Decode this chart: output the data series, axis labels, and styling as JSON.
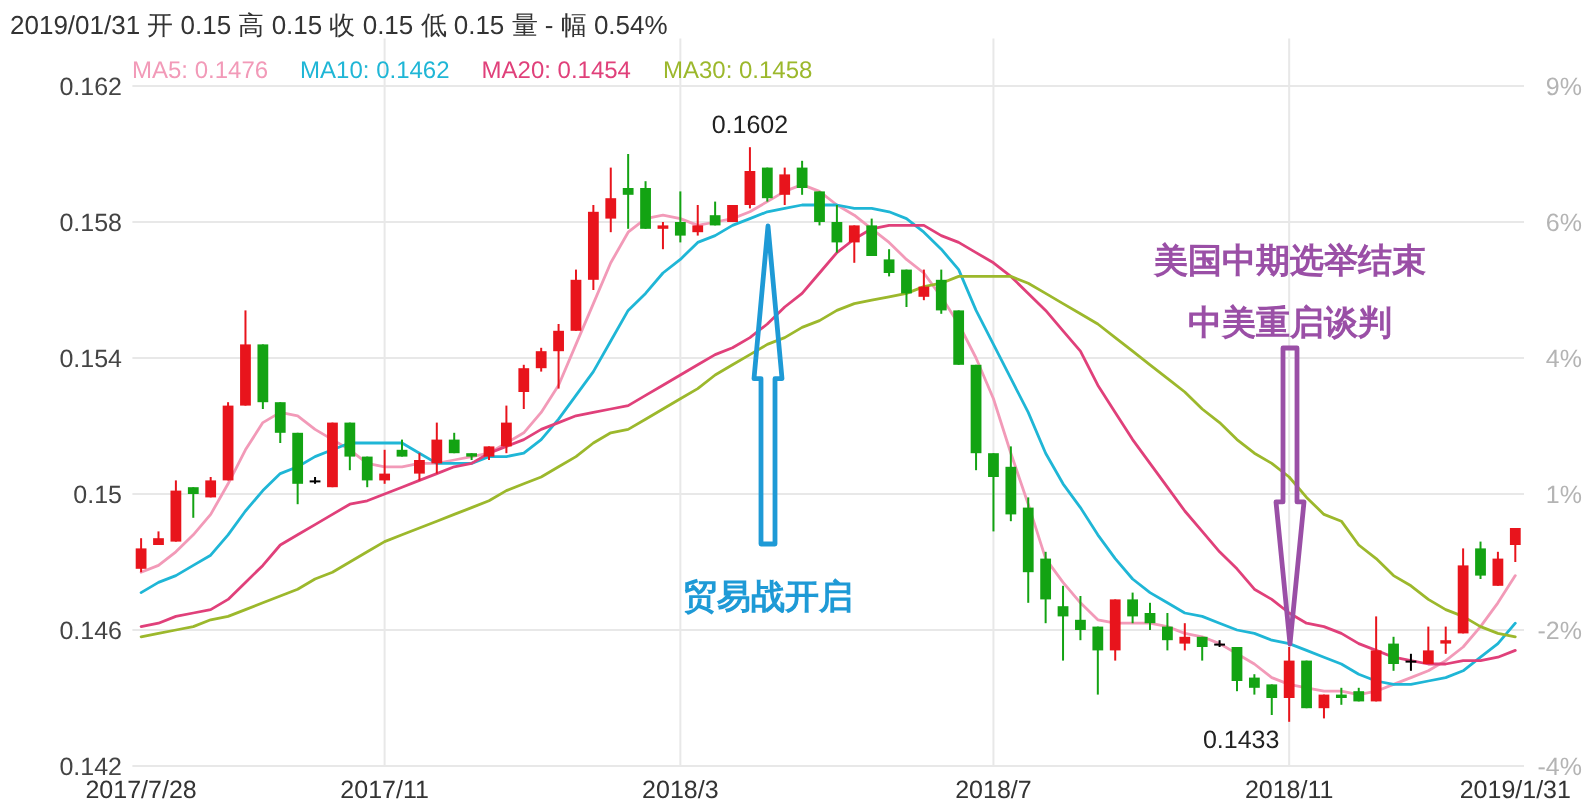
{
  "chart_data": {
    "type": "candlestick",
    "title": "2019/01/31 开 0.15 高 0.15 收 0.15 低 0.15 量 - 幅 0.54%",
    "categories": [
      "2017/7/28",
      null,
      null,
      null,
      null,
      null,
      null,
      null,
      null,
      null,
      null,
      null,
      null,
      null,
      "2017/11",
      null,
      null,
      null,
      null,
      null,
      null,
      null,
      null,
      null,
      null,
      null,
      null,
      null,
      null,
      null,
      null,
      "2018/3",
      null,
      null,
      null,
      null,
      null,
      null,
      null,
      null,
      null,
      null,
      null,
      null,
      null,
      null,
      null,
      null,
      null,
      "2018/7",
      null,
      null,
      null,
      null,
      null,
      null,
      null,
      null,
      null,
      null,
      null,
      null,
      null,
      null,
      null,
      null,
      "2018/11",
      null,
      null,
      null,
      null,
      null,
      null,
      null,
      null,
      null,
      null,
      null,
      null,
      "2019/1/31"
    ],
    "ohlc": [
      [
        0.1478,
        0.1487,
        0.1477,
        0.1484
      ],
      [
        0.1485,
        0.1489,
        0.1485,
        0.1487
      ],
      [
        0.1486,
        0.1504,
        0.1486,
        0.1501
      ],
      [
        0.1502,
        0.1502,
        0.1493,
        0.15
      ],
      [
        0.1499,
        0.1505,
        0.1499,
        0.1504
      ],
      [
        0.1504,
        0.1527,
        0.1504,
        0.1526
      ],
      [
        0.1526,
        0.1554,
        0.1526,
        0.1544
      ],
      [
        0.1544,
        0.1544,
        0.1525,
        0.1527
      ],
      [
        0.1527,
        0.1527,
        0.1515,
        0.1518
      ],
      [
        0.1518,
        0.1518,
        0.1497,
        0.1503
      ],
      [
        0.1504,
        0.1505,
        0.1503,
        0.1504
      ],
      [
        0.1502,
        0.1521,
        0.1502,
        0.1521
      ],
      [
        0.1521,
        0.1521,
        0.1507,
        0.1511
      ],
      [
        0.1511,
        0.1511,
        0.1502,
        0.1504
      ],
      [
        0.1504,
        0.1513,
        0.1503,
        0.1506
      ],
      [
        0.1513,
        0.1516,
        0.1511,
        0.1511
      ],
      [
        0.1506,
        0.1512,
        0.1504,
        0.151
      ],
      [
        0.1509,
        0.1521,
        0.1506,
        0.1516
      ],
      [
        0.1516,
        0.1518,
        0.1512,
        0.1512
      ],
      [
        0.1512,
        0.1512,
        0.151,
        0.1511
      ],
      [
        0.1511,
        0.1514,
        0.151,
        0.1514
      ],
      [
        0.1514,
        0.1526,
        0.1512,
        0.1521
      ],
      [
        0.153,
        0.1538,
        0.1525,
        0.1537
      ],
      [
        0.1537,
        0.1543,
        0.1536,
        0.1542
      ],
      [
        0.1542,
        0.155,
        0.1531,
        0.1548
      ],
      [
        0.1548,
        0.1566,
        0.1548,
        0.1563
      ],
      [
        0.1563,
        0.1585,
        0.156,
        0.1583
      ],
      [
        0.1581,
        0.1596,
        0.1577,
        0.1587
      ],
      [
        0.159,
        0.16,
        0.1578,
        0.1588
      ],
      [
        0.159,
        0.1592,
        0.1578,
        0.1578
      ],
      [
        0.1578,
        0.158,
        0.1572,
        0.1579
      ],
      [
        0.158,
        0.1589,
        0.1574,
        0.1576
      ],
      [
        0.1577,
        0.1585,
        0.1576,
        0.1579
      ],
      [
        0.1582,
        0.1586,
        0.1579,
        0.1579
      ],
      [
        0.158,
        0.1585,
        0.158,
        0.1585
      ],
      [
        0.1585,
        0.1602,
        0.1584,
        0.1595
      ],
      [
        0.1596,
        0.1596,
        0.1586,
        0.1587
      ],
      [
        0.1588,
        0.1596,
        0.1585,
        0.1594
      ],
      [
        0.1596,
        0.1598,
        0.1588,
        0.159
      ],
      [
        0.1589,
        0.1589,
        0.1579,
        0.158
      ],
      [
        0.158,
        0.1585,
        0.1571,
        0.1574
      ],
      [
        0.1574,
        0.1579,
        0.1568,
        0.1579
      ],
      [
        0.1579,
        0.1581,
        0.157,
        0.157
      ],
      [
        0.1569,
        0.1572,
        0.1564,
        0.1565
      ],
      [
        0.1566,
        0.1566,
        0.1555,
        0.1559
      ],
      [
        0.1558,
        0.1566,
        0.1557,
        0.1561
      ],
      [
        0.1563,
        0.1566,
        0.1553,
        0.1554
      ],
      [
        0.1554,
        0.1554,
        0.1538,
        0.1538
      ],
      [
        0.1538,
        0.1538,
        0.1507,
        0.1512
      ],
      [
        0.1512,
        0.1512,
        0.1489,
        0.1505
      ],
      [
        0.1508,
        0.1514,
        0.1492,
        0.1494
      ],
      [
        0.1496,
        0.1499,
        0.1468,
        0.1477
      ],
      [
        0.1481,
        0.1483,
        0.1462,
        0.1469
      ],
      [
        0.1467,
        0.1473,
        0.1451,
        0.1464
      ],
      [
        0.1463,
        0.147,
        0.1457,
        0.146
      ],
      [
        0.1461,
        0.1461,
        0.1441,
        0.1454
      ],
      [
        0.1454,
        0.1469,
        0.1451,
        0.1469
      ],
      [
        0.1469,
        0.1471,
        0.1462,
        0.1464
      ],
      [
        0.1465,
        0.1468,
        0.146,
        0.1462
      ],
      [
        0.1461,
        0.1465,
        0.1454,
        0.1457
      ],
      [
        0.1456,
        0.1462,
        0.1454,
        0.1458
      ],
      [
        0.1458,
        0.1458,
        0.1451,
        0.1455
      ],
      [
        0.1456,
        0.1457,
        0.1455,
        0.1456
      ],
      [
        0.1455,
        0.1455,
        0.1442,
        0.1445
      ],
      [
        0.1446,
        0.1447,
        0.1441,
        0.1443
      ],
      [
        0.1444,
        0.1444,
        0.1435,
        0.144
      ],
      [
        0.144,
        0.1455,
        0.1433,
        0.1451
      ],
      [
        0.1451,
        0.1451,
        0.1437,
        0.1437
      ],
      [
        0.1437,
        0.1441,
        0.1434,
        0.1441
      ],
      [
        0.1441,
        0.1443,
        0.1438,
        0.144
      ],
      [
        0.1442,
        0.1443,
        0.1439,
        0.1439
      ],
      [
        0.1439,
        0.1464,
        0.1439,
        0.1454
      ],
      [
        0.1456,
        0.1458,
        0.1448,
        0.145
      ],
      [
        0.1451,
        0.1453,
        0.1448,
        0.1451
      ],
      [
        0.145,
        0.1461,
        0.145,
        0.1454
      ],
      [
        0.1456,
        0.1461,
        0.1453,
        0.1457
      ],
      [
        0.1459,
        0.1484,
        0.1459,
        0.1479
      ],
      [
        0.1484,
        0.1486,
        0.1475,
        0.1476
      ],
      [
        0.1473,
        0.1483,
        0.1473,
        0.1481
      ],
      [
        0.1485,
        0.149,
        0.148,
        0.149
      ]
    ],
    "series": [
      {
        "name": "MA5: 0.1476",
        "type": "line",
        "color": "#f29ab8",
        "values": [
          0.1477,
          0.1479,
          0.1483,
          0.1488,
          0.1494,
          0.1503,
          0.1513,
          0.1521,
          0.1524,
          0.1523,
          0.1519,
          0.1516,
          0.1513,
          0.1509,
          0.1508,
          0.1508,
          0.1509,
          0.1509,
          0.151,
          0.1511,
          0.1512,
          0.1515,
          0.1518,
          0.1524,
          0.1532,
          0.1544,
          0.1556,
          0.1568,
          0.1577,
          0.1581,
          0.1582,
          0.1581,
          0.1579,
          0.158,
          0.1581,
          0.1583,
          0.1586,
          0.1589,
          0.1591,
          0.1589,
          0.1585,
          0.1582,
          0.1578,
          0.1574,
          0.1569,
          0.1565,
          0.1558,
          0.155,
          0.154,
          0.1528,
          0.1512,
          0.1497,
          0.1481,
          0.1474,
          0.1468,
          0.1463,
          0.1462,
          0.1462,
          0.1462,
          0.1461,
          0.1459,
          0.1458,
          0.1456,
          0.1453,
          0.145,
          0.1446,
          0.1444,
          0.1443,
          0.1442,
          0.1442,
          0.1441,
          0.1442,
          0.1444,
          0.1446,
          0.1448,
          0.1451,
          0.1455,
          0.1461,
          0.1468,
          0.1476
        ]
      },
      {
        "name": "MA10: 0.1462",
        "type": "line",
        "color": "#1fb6d6",
        "values": [
          0.1471,
          0.1474,
          0.1476,
          0.1479,
          0.1482,
          0.1488,
          0.1495,
          0.1501,
          0.1506,
          0.1508,
          0.1511,
          0.1513,
          0.1515,
          0.1515,
          0.1515,
          0.1515,
          0.1512,
          0.1509,
          0.1509,
          0.1509,
          0.1511,
          0.1511,
          0.1512,
          0.1516,
          0.1522,
          0.1529,
          0.1536,
          0.1545,
          0.1554,
          0.1559,
          0.1565,
          0.1569,
          0.1574,
          0.1576,
          0.1579,
          0.1581,
          0.1583,
          0.1584,
          0.1585,
          0.1585,
          0.1585,
          0.1584,
          0.1584,
          0.1583,
          0.1581,
          0.1577,
          0.1572,
          0.1566,
          0.1554,
          0.1544,
          0.1534,
          0.1524,
          0.1512,
          0.1503,
          0.1496,
          0.1488,
          0.1481,
          0.1475,
          0.1471,
          0.1468,
          0.1465,
          0.1464,
          0.1462,
          0.146,
          0.1459,
          0.1457,
          0.1456,
          0.1454,
          0.1452,
          0.145,
          0.1447,
          0.1445,
          0.1444,
          0.1444,
          0.1445,
          0.1446,
          0.1448,
          0.1452,
          0.1456,
          0.1462
        ]
      },
      {
        "name": "MA20: 0.1454",
        "type": "line",
        "color": "#e0407a",
        "values": [
          0.1461,
          0.1462,
          0.1464,
          0.1465,
          0.1466,
          0.1469,
          0.1474,
          0.1479,
          0.1485,
          0.1488,
          0.1491,
          0.1494,
          0.1497,
          0.1498,
          0.15,
          0.1502,
          0.1504,
          0.1506,
          0.1508,
          0.1509,
          0.1512,
          0.1514,
          0.1516,
          0.1519,
          0.1521,
          0.1523,
          0.1524,
          0.1525,
          0.1526,
          0.1529,
          0.1532,
          0.1535,
          0.1538,
          0.1541,
          0.1543,
          0.1546,
          0.155,
          0.1555,
          0.1559,
          0.1565,
          0.1571,
          0.1575,
          0.1578,
          0.1579,
          0.1579,
          0.1579,
          0.1576,
          0.1574,
          0.1571,
          0.1568,
          0.1564,
          0.1559,
          0.1554,
          0.1548,
          0.1542,
          0.1532,
          0.1524,
          0.1516,
          0.1509,
          0.1502,
          0.1495,
          0.1489,
          0.1483,
          0.1478,
          0.1472,
          0.1469,
          0.1465,
          0.1462,
          0.1461,
          0.1459,
          0.1456,
          0.1454,
          0.1452,
          0.1451,
          0.145,
          0.145,
          0.1451,
          0.1451,
          0.1452,
          0.1454
        ]
      },
      {
        "name": "MA30: 0.1458",
        "type": "line",
        "color": "#9cb82c",
        "values": [
          0.1458,
          0.1459,
          0.146,
          0.1461,
          0.1463,
          0.1464,
          0.1466,
          0.1468,
          0.147,
          0.1472,
          0.1475,
          0.1477,
          0.148,
          0.1483,
          0.1486,
          0.1488,
          0.149,
          0.1492,
          0.1494,
          0.1496,
          0.1498,
          0.1501,
          0.1503,
          0.1505,
          0.1508,
          0.1511,
          0.1515,
          0.1518,
          0.1519,
          0.1522,
          0.1525,
          0.1528,
          0.1531,
          0.1535,
          0.1538,
          0.1541,
          0.1544,
          0.1546,
          0.1549,
          0.1551,
          0.1554,
          0.1556,
          0.1557,
          0.1558,
          0.1559,
          0.1561,
          0.1562,
          0.1564,
          0.1564,
          0.1564,
          0.1564,
          0.1562,
          0.1559,
          0.1556,
          0.1553,
          0.155,
          0.1546,
          0.1542,
          0.1538,
          0.1534,
          0.153,
          0.1525,
          0.1521,
          0.1516,
          0.1512,
          0.1509,
          0.1505,
          0.1499,
          0.1494,
          0.1492,
          0.1485,
          0.1481,
          0.1476,
          0.1473,
          0.1469,
          0.1466,
          0.1464,
          0.1461,
          0.1459,
          0.1458
        ]
      }
    ],
    "ylim": [
      0.142,
      0.1634
    ],
    "yticks": [
      0.142,
      0.146,
      0.15,
      0.154,
      0.158,
      0.162
    ],
    "y2lim": [
      -4.44,
      9.96
    ],
    "y2ticks": [
      {
        "value": -4.44,
        "label": "-4%"
      },
      {
        "value": -1.75,
        "label": "-2%"
      },
      {
        "value": 0.94,
        "label": "1%"
      },
      {
        "value": 3.63,
        "label": "4%"
      },
      {
        "value": 6.33,
        "label": "6%"
      },
      {
        "value": 9.02,
        "label": "9%"
      }
    ],
    "grid": true,
    "legend": "top left",
    "annotations": [
      {
        "text": "0.1602",
        "y": 0.1602
      },
      "0.1433",
      "贸易战开启",
      "美国中期选举结束",
      "中美重启谈判"
    ]
  }
}
